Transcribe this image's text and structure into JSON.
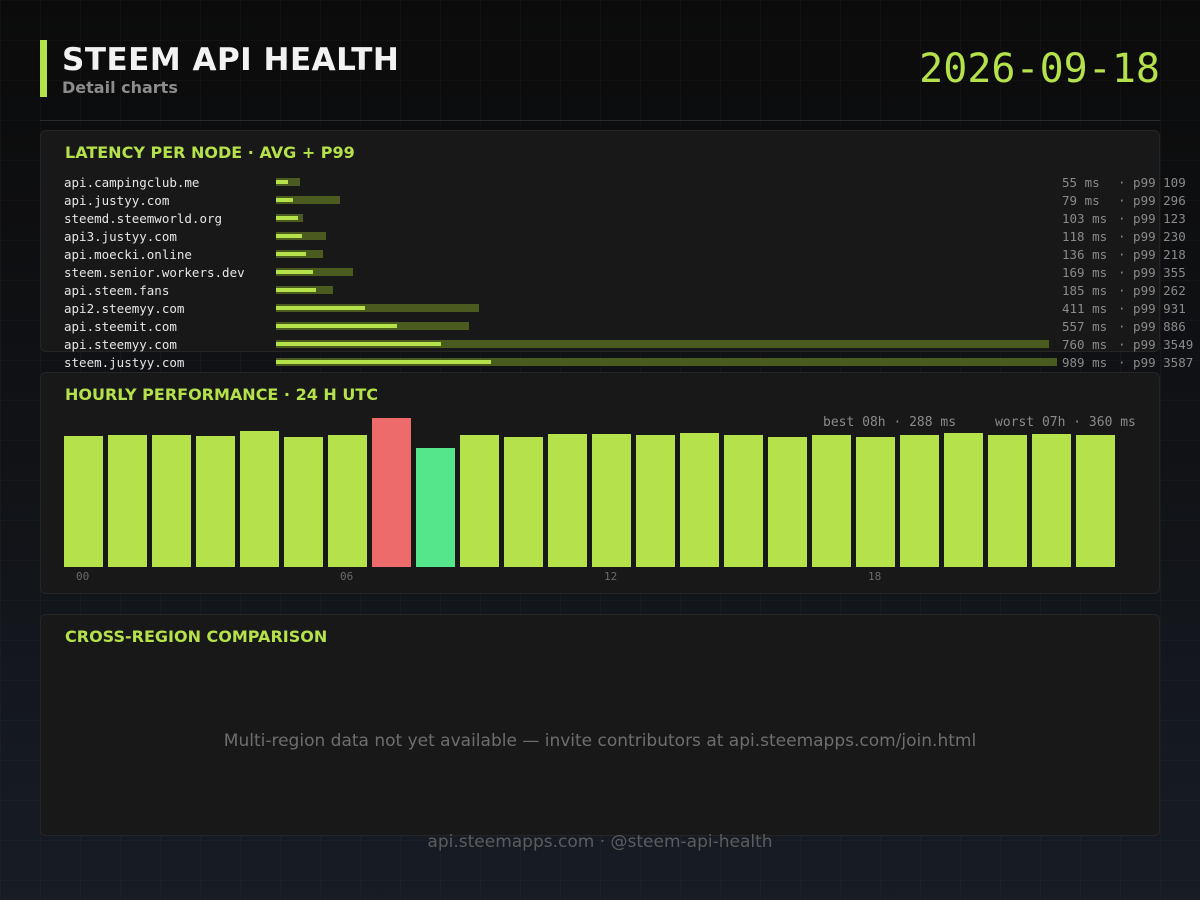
{
  "header": {
    "title": "STEEM API HEALTH",
    "subtitle": "Detail charts",
    "date": "2026-09-18"
  },
  "colors": {
    "accent": "#b5e24a",
    "p99_bar": "#4b5a1e",
    "best": "#55e68c",
    "worst": "#ee6b6b"
  },
  "chart_data": [
    {
      "type": "bar",
      "orientation": "horizontal",
      "title": "LATENCY PER NODE  ·  AVG + P99",
      "unit": "ms",
      "categories": [
        "api.campingclub.me",
        "api.justyy.com",
        "steemd.steemworld.org",
        "api3.justyy.com",
        "api.moecki.online",
        "steem.senior.workers.dev",
        "api.steem.fans",
        "api2.steemyy.com",
        "api.steemit.com",
        "api.steemyy.com",
        "steem.justyy.com"
      ],
      "series": [
        {
          "name": "avg",
          "values": [
            55,
            79,
            103,
            118,
            136,
            169,
            185,
            411,
            557,
            760,
            989
          ]
        },
        {
          "name": "p99",
          "values": [
            109,
            296,
            123,
            230,
            218,
            355,
            262,
            931,
            886,
            3549,
            3587
          ]
        }
      ],
      "value_labels": [
        "55 ms",
        "79 ms",
        "103 ms",
        "118 ms",
        "136 ms",
        "169 ms",
        "185 ms",
        "411 ms",
        "557 ms",
        "760 ms",
        "989 ms"
      ],
      "p99_labels": [
        "· p99 109",
        "· p99 296",
        "· p99 123",
        "· p99 230",
        "· p99 218",
        "· p99 355",
        "· p99 262",
        "· p99 931",
        "· p99 886",
        "· p99 3549",
        "· p99 3587"
      ]
    },
    {
      "type": "bar",
      "title": "HOURLY PERFORMANCE  ·  24 H UTC",
      "unit": "ms",
      "x": [
        0,
        1,
        2,
        3,
        4,
        5,
        6,
        7,
        8,
        9,
        10,
        11,
        12,
        13,
        14,
        15,
        16,
        17,
        18,
        19,
        20,
        21,
        22,
        23
      ],
      "values": [
        317,
        318,
        320,
        317,
        328,
        313,
        319,
        360,
        288,
        319,
        313,
        321,
        321,
        318,
        323,
        320,
        314,
        318,
        314,
        318,
        324,
        318,
        321,
        318
      ],
      "ylim": [
        0,
        360
      ],
      "tick_labels": [
        "00",
        "06",
        "12",
        "18"
      ],
      "best_index": 8,
      "worst_index": 7,
      "best_label": "best 08h · 288 ms",
      "worst_label": "worst 07h · 360 ms"
    }
  ],
  "region": {
    "title": "CROSS-REGION COMPARISON",
    "message": "Multi-region data not yet available — invite contributors at api.steemapps.com/join.html"
  },
  "footer": {
    "text": "api.steemapps.com  ·  @steem-api-health"
  }
}
